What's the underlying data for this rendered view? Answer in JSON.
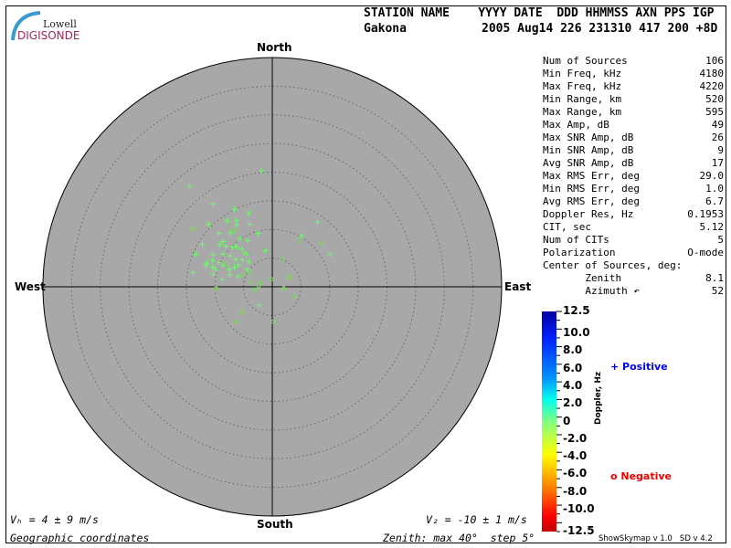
{
  "logo": {
    "line1": "Lowell",
    "line2": "DIGISONDE"
  },
  "header": {
    "columns": "STATION NAME    YYYY DATE  DDD HHMMSS AXN PPS IGP",
    "station": "Gakona",
    "values": "2005 Aug14 226 231310 417 200 +8D"
  },
  "stats": [
    {
      "label": "Num of Sources",
      "value": "106"
    },
    {
      "label": "Min Freq, kHz",
      "value": "4180"
    },
    {
      "label": "Max Freq, kHz",
      "value": "4220"
    },
    {
      "label": "Min Range, km",
      "value": "520"
    },
    {
      "label": "Max Range, km",
      "value": "595"
    },
    {
      "label": "Max Amp, dB",
      "value": "49"
    },
    {
      "label": "Max SNR Amp, dB",
      "value": "26"
    },
    {
      "label": "Min SNR Amp, dB",
      "value": "9"
    },
    {
      "label": "Avg SNR Amp, dB",
      "value": "17"
    },
    {
      "label": "Max RMS Err, deg",
      "value": "29.0"
    },
    {
      "label": "Min RMS Err, deg",
      "value": "1.0"
    },
    {
      "label": "Avg RMS Err, deg",
      "value": "6.7"
    },
    {
      "label": "Doppler Res, Hz",
      "value": "0.1953"
    },
    {
      "label": "CIT, sec",
      "value": "5.12"
    },
    {
      "label": "Num of CITs",
      "value": "5"
    },
    {
      "label": "Polarization",
      "value": "O-mode"
    },
    {
      "label": "Center of Sources, deg:",
      "value": ""
    },
    {
      "label": "       Zenith",
      "value": "8.1"
    },
    {
      "label": "       Azimuth ↶",
      "value": "52"
    }
  ],
  "footer": {
    "vh": "Vₕ = 4 ± 9 m/s",
    "vz": "V₂ = -10 ± 1 m/s",
    "coords": "Geographic coordinates",
    "zenith": "Zenith: max 40°  step 5°",
    "version": "ShowSkymap v 1.0   SD v 4.2"
  },
  "chart_data": {
    "type": "scatter",
    "projection": "polar skymap",
    "compass": {
      "north": "North",
      "south": "South",
      "east": "East",
      "west": "West"
    },
    "zenith_max_deg": 40,
    "zenith_step_deg": 5,
    "units": "degrees east / north offset from zenith",
    "colors": {
      "background": "#a8a8a8",
      "positive_marker": "#66ff66",
      "negative_marker": "#77dd55"
    },
    "positive": [
      [
        -1.9,
        20.2
      ],
      [
        -14.4,
        17.5
      ],
      [
        -10.3,
        14.4
      ],
      [
        -6.6,
        13.5
      ],
      [
        -4.1,
        12.8
      ],
      [
        -7.9,
        11.5
      ],
      [
        -6.3,
        11.6
      ],
      [
        -11.1,
        10.9
      ],
      [
        -6.2,
        10.8
      ],
      [
        -3.9,
        10.9
      ],
      [
        -7.3,
        9.4
      ],
      [
        -9.3,
        9.3
      ],
      [
        -2.5,
        9.3
      ],
      [
        7.9,
        11.3
      ],
      [
        5.1,
        8.9
      ],
      [
        10.1,
        5.7
      ],
      [
        -5.7,
        8.4
      ],
      [
        -4.3,
        8.1
      ],
      [
        -8.6,
        7.9
      ],
      [
        -12.2,
        7.4
      ],
      [
        -9.2,
        7.4
      ],
      [
        -8.1,
        7.1
      ],
      [
        -6.3,
        7.0
      ],
      [
        -5.3,
        6.6
      ],
      [
        -7.0,
        6.9
      ],
      [
        -1.2,
        6.3
      ],
      [
        -4.8,
        5.9
      ],
      [
        -13.3,
        5.7
      ],
      [
        -10.3,
        5.6
      ],
      [
        -8.6,
        5.7
      ],
      [
        -7.4,
        5.4
      ],
      [
        -4.5,
        5.5
      ],
      [
        -11.4,
        4.1
      ],
      [
        -11.6,
        3.7
      ],
      [
        -10.4,
        4.6
      ],
      [
        -9.3,
        4.2
      ],
      [
        -6.4,
        4.8
      ],
      [
        -5.2,
        4.7
      ],
      [
        -4.1,
        4.4
      ],
      [
        -10.4,
        3.4
      ],
      [
        -9.9,
        3.0
      ],
      [
        -8.6,
        3.7
      ],
      [
        -7.5,
        3.0
      ],
      [
        -6.6,
        3.4
      ],
      [
        -5.9,
        3.8
      ],
      [
        -8.7,
        1.3
      ],
      [
        -13.8,
        2.5
      ],
      [
        -4.3,
        3.0
      ],
      [
        -5.9,
        1.8
      ],
      [
        -7.4,
        2.1
      ],
      [
        -10.3,
        2.2
      ],
      [
        -2.3,
        -3.2
      ]
    ],
    "negative": [
      [
        -13.9,
        10.1
      ],
      [
        -6.6,
        9.8
      ],
      [
        4.7,
        8.2
      ],
      [
        8.6,
        7.5
      ],
      [
        1.8,
        4.8
      ],
      [
        -4.6,
        5.8
      ],
      [
        -8.0,
        4.0
      ],
      [
        -5.1,
        2.1
      ],
      [
        -4.0,
        2.5
      ],
      [
        -3.9,
        0.8
      ],
      [
        -2.1,
        0.7
      ],
      [
        -2.4,
        0.2
      ],
      [
        -0.2,
        1.3
      ],
      [
        2.8,
        1.8
      ],
      [
        3.1,
        1.6
      ],
      [
        -9.8,
        -0.3
      ],
      [
        -3.1,
        -0.5
      ],
      [
        2.0,
        -0.3
      ],
      [
        3.8,
        -1.7
      ],
      [
        -5.3,
        -4.4
      ],
      [
        -6.3,
        -6.1
      ],
      [
        0.2,
        -6.1
      ]
    ],
    "colorbar": {
      "label": "Doppler, Hz",
      "range": [
        -12.5,
        12.5
      ],
      "ticks": [
        "12.5",
        "10.0",
        "8.0",
        "6.0",
        "4.0",
        "2.0",
        "0",
        "-2.0",
        "-4.0",
        "-6.0",
        "-8.0",
        "-10.0",
        "-12.5"
      ]
    },
    "legend": {
      "positive": "Positive",
      "negative": "Negative",
      "positive_color": "#0000ee",
      "negative_color": "#ee0000"
    }
  }
}
